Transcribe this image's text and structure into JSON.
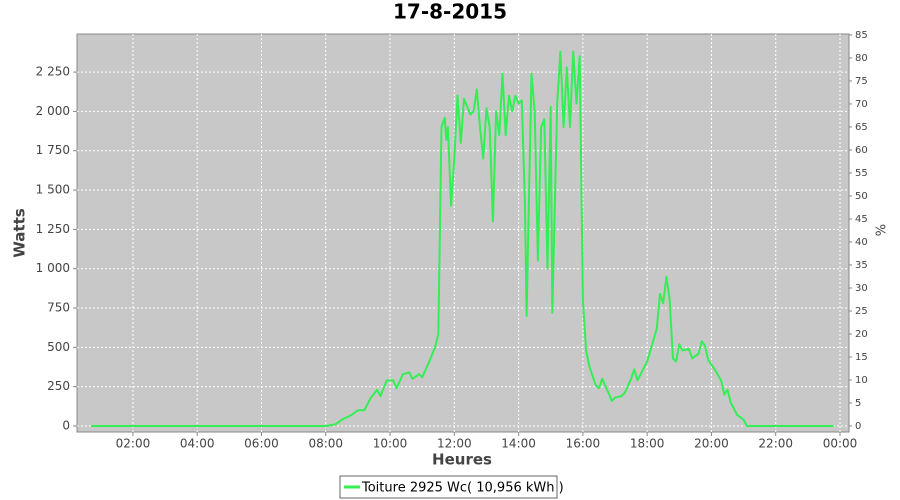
{
  "chart_data": {
    "type": "line",
    "title": "17-8-2015",
    "x_label": "Heures",
    "y_label": "Watts",
    "y2_label": "%",
    "x": [
      0.7,
      8.0,
      8.3,
      8.5,
      8.8,
      9.0,
      9.2,
      9.4,
      9.6,
      9.7,
      9.9,
      10.1,
      10.2,
      10.4,
      10.6,
      10.7,
      10.9,
      11.0,
      11.2,
      11.4,
      11.5,
      11.6,
      11.7,
      11.75,
      11.8,
      11.9,
      12.0,
      12.1,
      12.2,
      12.3,
      12.5,
      12.6,
      12.7,
      12.8,
      12.9,
      13.0,
      13.1,
      13.2,
      13.3,
      13.4,
      13.5,
      13.6,
      13.7,
      13.8,
      13.9,
      14.0,
      14.1,
      14.2,
      14.25,
      14.4,
      14.5,
      14.6,
      14.7,
      14.8,
      14.9,
      15.0,
      15.05,
      15.2,
      15.3,
      15.4,
      15.5,
      15.6,
      15.7,
      15.8,
      15.9,
      16.0,
      16.1,
      16.2,
      16.4,
      16.5,
      16.6,
      16.8,
      16.9,
      17.0,
      17.2,
      17.3,
      17.5,
      17.6,
      17.7,
      17.9,
      18.0,
      18.2,
      18.3,
      18.4,
      18.5,
      18.6,
      18.7,
      18.8,
      18.9,
      19.0,
      19.1,
      19.3,
      19.4,
      19.6,
      19.7,
      19.8,
      19.9,
      20.1,
      20.3,
      20.4,
      20.5,
      20.6,
      20.8,
      21.0,
      21.1,
      21.3,
      23.8
    ],
    "series": [
      {
        "name": "Toiture 2925 Wc( 10,956 kWh )",
        "color": "#33ee55",
        "values": [
          0,
          0,
          10,
          40,
          70,
          100,
          100,
          180,
          230,
          190,
          290,
          290,
          240,
          330,
          340,
          300,
          330,
          310,
          400,
          500,
          580,
          1900,
          1960,
          1820,
          1900,
          1400,
          1700,
          2100,
          1800,
          2080,
          1980,
          2000,
          2140,
          1900,
          1700,
          2020,
          1900,
          1300,
          2000,
          1850,
          2240,
          1850,
          2100,
          2000,
          2100,
          2050,
          2070,
          1400,
          700,
          2240,
          2000,
          1050,
          1900,
          1950,
          1000,
          2030,
          720,
          2050,
          2380,
          1900,
          2280,
          1900,
          2380,
          2050,
          2350,
          800,
          480,
          380,
          260,
          240,
          300,
          210,
          160,
          180,
          190,
          210,
          300,
          360,
          290,
          370,
          410,
          550,
          620,
          840,
          780,
          950,
          800,
          430,
          410,
          520,
          480,
          490,
          430,
          460,
          540,
          510,
          420,
          360,
          290,
          200,
          230,
          150,
          70,
          40,
          0,
          0,
          0
        ]
      }
    ],
    "xlim": [
      0.26,
      24.28
    ],
    "xticks": [
      {
        "value": 2,
        "label": "02:00"
      },
      {
        "value": 4,
        "label": "04:00"
      },
      {
        "value": 6,
        "label": "06:00"
      },
      {
        "value": 8,
        "label": "08:00"
      },
      {
        "value": 10,
        "label": "10:00"
      },
      {
        "value": 12,
        "label": "12:00"
      },
      {
        "value": 14,
        "label": "14:00"
      },
      {
        "value": 16,
        "label": "16:00"
      },
      {
        "value": 18,
        "label": "18:00"
      },
      {
        "value": 20,
        "label": "20:00"
      },
      {
        "value": 22,
        "label": "22:00"
      },
      {
        "value": 24,
        "label": "00:00"
      }
    ],
    "ylim": [
      -38,
      2492
    ],
    "yticks": [
      0,
      250,
      500,
      750,
      {
        "value": 1000,
        "label": "1 000"
      },
      {
        "value": 1250,
        "label": "1 250"
      },
      {
        "value": 1500,
        "label": "1 500"
      },
      {
        "value": 1750,
        "label": "1 750"
      },
      {
        "value": 2000,
        "label": "2 000"
      },
      {
        "value": 2250,
        "label": "2 250"
      }
    ],
    "y2lim": [
      -1.3,
      85.2
    ],
    "y2ticks": [
      0,
      5,
      10,
      15,
      20,
      25,
      30,
      35,
      40,
      45,
      50,
      55,
      60,
      65,
      70,
      75,
      80,
      85
    ],
    "grid": true
  }
}
